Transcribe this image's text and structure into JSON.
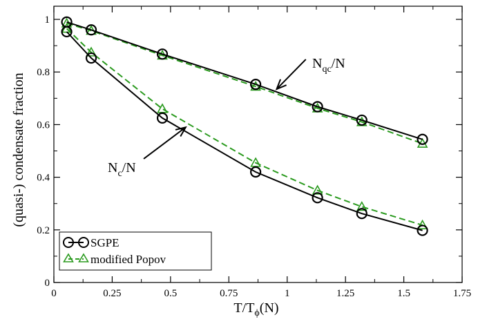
{
  "chart_data": {
    "type": "line",
    "xlabel": {
      "main": "T/T",
      "sub": "ϕ",
      "tail": "(N)"
    },
    "ylabel": "(quasi-) condensate fraction",
    "xlim": [
      0,
      1.75
    ],
    "ylim": [
      0,
      1.05
    ],
    "x_ticks": [
      "0",
      "0.25",
      "0.5",
      "0.75",
      "1",
      "1.25",
      "1.5",
      "1.75"
    ],
    "x_tick_values": [
      0,
      0.25,
      0.5,
      0.75,
      1.0,
      1.25,
      1.5,
      1.75
    ],
    "y_ticks": [
      "0",
      "0.2",
      "0.4",
      "0.6",
      "0.8",
      "1"
    ],
    "y_tick_values": [
      0,
      0.2,
      0.4,
      0.6,
      0.8,
      1.0
    ],
    "grid": false,
    "legend": {
      "placement": "bottom-left",
      "entries": [
        {
          "label": "SGPE",
          "color": "#000000",
          "marker": "circle"
        },
        {
          "label": "modified Popov",
          "color": "#2a9a1e",
          "marker": "triangle"
        }
      ]
    },
    "series": [
      {
        "name": "SGPE",
        "group": "Nqc",
        "color": "#000000",
        "marker": "circle",
        "dash": false,
        "x": [
          0.055,
          0.16,
          0.465,
          0.865,
          1.13,
          1.32,
          1.58
        ],
        "y": [
          0.99,
          0.96,
          0.868,
          0.753,
          0.668,
          0.617,
          0.544
        ]
      },
      {
        "name": "modified Popov",
        "group": "Nqc",
        "color": "#2a9a1e",
        "marker": "triangle",
        "dash": true,
        "x": [
          0.055,
          0.16,
          0.465,
          0.865,
          1.13,
          1.32,
          1.58
        ],
        "y": [
          0.985,
          0.957,
          0.863,
          0.745,
          0.662,
          0.61,
          0.528
        ]
      },
      {
        "name": "SGPE",
        "group": "Nc",
        "color": "#000000",
        "marker": "circle",
        "dash": false,
        "x": [
          0.055,
          0.16,
          0.465,
          0.865,
          1.13,
          1.32,
          1.58
        ],
        "y": [
          0.953,
          0.853,
          0.625,
          0.42,
          0.322,
          0.262,
          0.198
        ]
      },
      {
        "name": "modified Popov",
        "group": "Nc",
        "color": "#2a9a1e",
        "marker": "triangle",
        "dash": true,
        "x": [
          0.055,
          0.16,
          0.465,
          0.865,
          1.13,
          1.32,
          1.58
        ],
        "y": [
          0.965,
          0.875,
          0.66,
          0.455,
          0.35,
          0.288,
          0.218
        ]
      }
    ],
    "annotations": [
      {
        "main": "N",
        "sub": "qc",
        "tail": "/N",
        "arrow_from": [
          1.08,
          0.848
        ],
        "arrow_to": [
          0.955,
          0.735
        ]
      },
      {
        "main": "N",
        "sub": "c",
        "tail": "/N",
        "arrow_from": [
          0.385,
          0.47
        ],
        "arrow_to": [
          0.565,
          0.59
        ]
      }
    ]
  }
}
